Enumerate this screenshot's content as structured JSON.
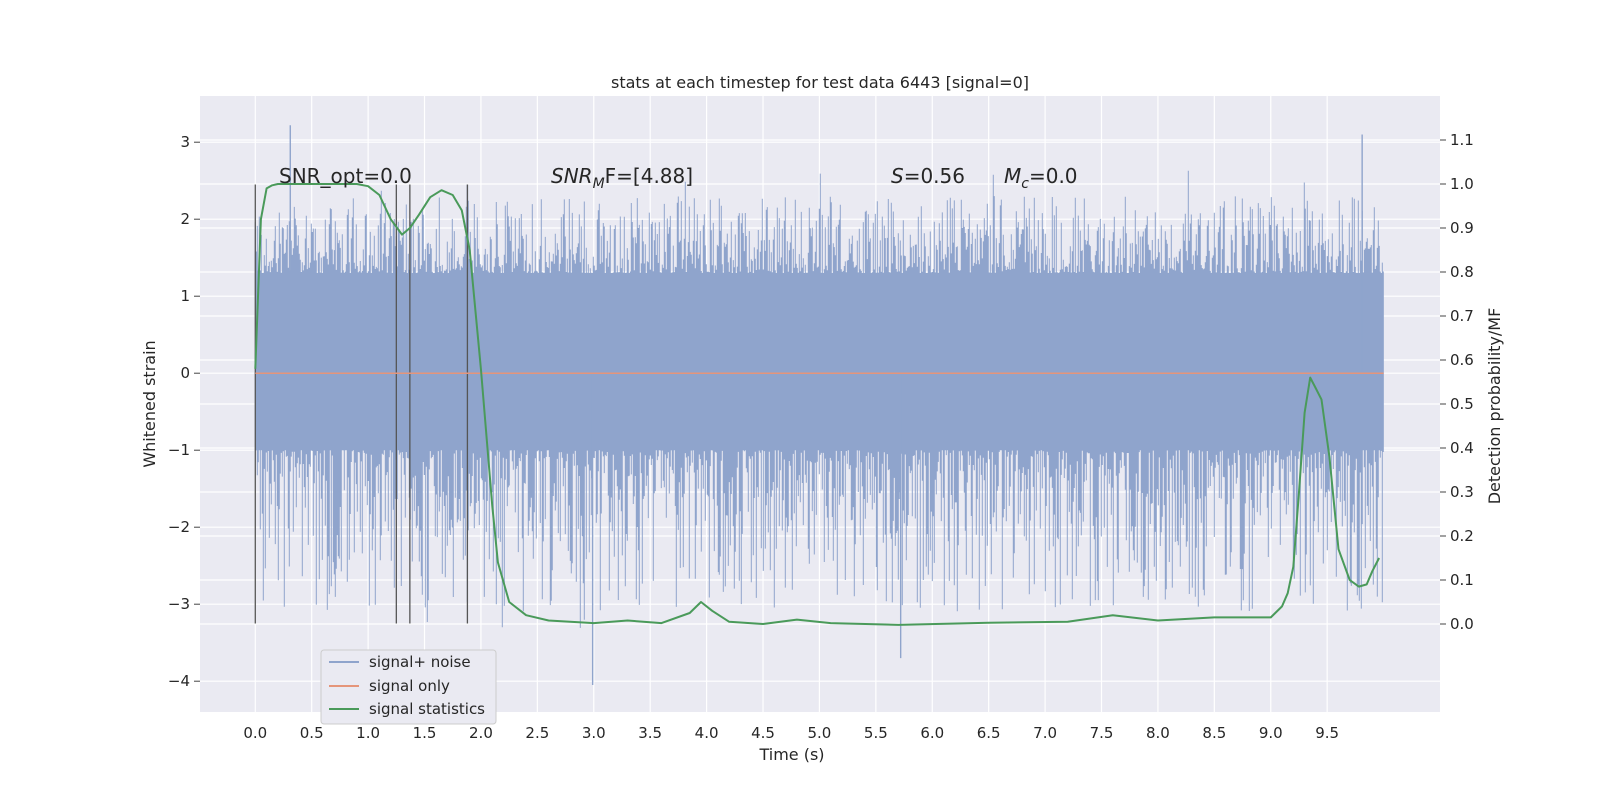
{
  "chart_data": {
    "type": "line",
    "title": "stats at each timestep for test data 6443 [signal=0]",
    "xlabel": "Time (s)",
    "ylabel": "Whitened strain",
    "ylabel_right": "Detection probability/MF",
    "xlim": [
      -0.49,
      10.5
    ],
    "ylim": [
      -4.4,
      3.6
    ],
    "ylim_right": [
      -0.2,
      1.2
    ],
    "x_ticks": [
      "0.0",
      "0.5",
      "1.0",
      "1.5",
      "2.0",
      "2.5",
      "3.0",
      "3.5",
      "4.0",
      "4.5",
      "5.0",
      "5.5",
      "6.0",
      "6.5",
      "7.0",
      "7.5",
      "8.0",
      "8.5",
      "9.0",
      "9.5"
    ],
    "y_ticks": [
      "3",
      "2",
      "1",
      "0",
      "−1",
      "−2",
      "−3",
      "−4"
    ],
    "y_right_ticks": [
      "1.1",
      "1.0",
      "0.9",
      "0.8",
      "0.7",
      "0.6",
      "0.5",
      "0.4",
      "0.3",
      "0.2",
      "0.1",
      "0.0"
    ],
    "grid": true,
    "legend_placement": "lower-left",
    "annotations": {
      "snr_opt": "SNR_opt=0.0",
      "snr_mf_base": "SNR",
      "snr_mf_sub": "M",
      "snr_mf_rest": "F=[4.88]",
      "s_var": "S",
      "s_rest": "=0.56",
      "mc_base": "M",
      "mc_sub": "c",
      "mc_rest": "=0.0"
    },
    "vertical_markers": [
      0.0,
      1.25,
      1.37,
      1.88
    ],
    "series": [
      {
        "name": "signal+ noise",
        "color": "#8fa4cc",
        "x_range": [
          0.0,
          10.0
        ],
        "envelope_core": [
          -1.0,
          1.3
        ],
        "envelope_spikes": [
          -4.0,
          3.2
        ],
        "peaks": [
          [
            0.31,
            3.22
          ],
          [
            2.99,
            -4.05
          ],
          [
            5.72,
            -3.7
          ],
          [
            9.81,
            3.1
          ],
          [
            1.88,
            2.45
          ]
        ]
      },
      {
        "name": "signal only",
        "color": "#e5957a",
        "x": [
          0.0,
          10.0
        ],
        "values": [
          0.0,
          0.0
        ]
      },
      {
        "name": "signal statistics",
        "color": "#4a9a5a",
        "axis": "right",
        "x": [
          0.0,
          0.05,
          0.1,
          0.15,
          0.2,
          0.3,
          0.5,
          0.7,
          0.9,
          1.0,
          1.1,
          1.2,
          1.3,
          1.37,
          1.45,
          1.55,
          1.65,
          1.75,
          1.83,
          1.9,
          2.0,
          2.1,
          2.15,
          2.25,
          2.4,
          2.6,
          3.0,
          3.3,
          3.6,
          3.85,
          3.95,
          4.05,
          4.2,
          4.5,
          4.8,
          5.1,
          5.7,
          6.5,
          7.2,
          7.6,
          8.0,
          8.5,
          9.0,
          9.1,
          9.15,
          9.2,
          9.25,
          9.3,
          9.35,
          9.39,
          9.45,
          9.52,
          9.6,
          9.7,
          9.78,
          9.85,
          9.9,
          9.96
        ],
        "values": [
          0.58,
          0.92,
          0.99,
          0.997,
          1.0,
          1.0,
          1.0,
          1.0,
          1.0,
          0.995,
          0.975,
          0.92,
          0.885,
          0.9,
          0.93,
          0.97,
          0.986,
          0.975,
          0.94,
          0.85,
          0.58,
          0.27,
          0.14,
          0.05,
          0.02,
          0.008,
          0.002,
          0.008,
          0.002,
          0.025,
          0.05,
          0.03,
          0.005,
          0.0,
          0.01,
          0.002,
          -0.002,
          0.003,
          0.005,
          0.02,
          0.008,
          0.015,
          0.015,
          0.04,
          0.07,
          0.13,
          0.3,
          0.48,
          0.56,
          0.54,
          0.51,
          0.38,
          0.17,
          0.1,
          0.085,
          0.09,
          0.12,
          0.15
        ]
      }
    ]
  }
}
